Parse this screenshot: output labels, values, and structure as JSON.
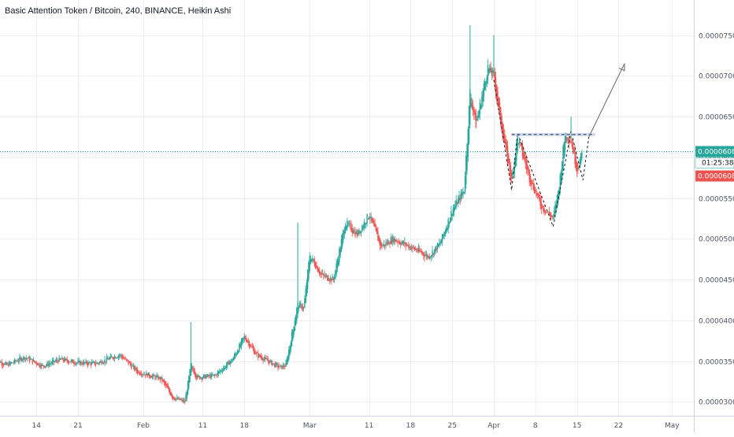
{
  "chart_data": {
    "type": "candlestick",
    "title": "Basic Attention Token / Bitcoin, 240, BINANCE, Heikin Ashi",
    "x_labels": [
      "14",
      "21",
      "Feb",
      "11",
      "18",
      "Mar",
      "11",
      "18",
      "25",
      "Apr",
      "8",
      "15",
      "22",
      "May"
    ],
    "y_ticks": [
      "0.00003000",
      "0.00003500",
      "0.00004000",
      "0.00004500",
      "0.00005000",
      "0.00005500",
      "0.00006000",
      "0.00006500",
      "0.00007000",
      "0.00007500"
    ],
    "ylim": [
      2.83e-05,
      7.93e-05
    ],
    "current_price_label": "0.00006080",
    "countdown_label": "01:25:38",
    "red_price_label": "0.00006080",
    "current_price": 6.08e-05,
    "grid": true,
    "colors": {
      "up": "#26a69a",
      "down": "#ef5350",
      "grid": "#eef0f3",
      "axis_text": "#131722",
      "price_line": "#26a69a"
    },
    "series_close_path": [
      {
        "date": "Jan 7",
        "value": 3.52e-05
      },
      {
        "date": "Jan 9",
        "value": 3.45e-05
      },
      {
        "date": "Jan 12",
        "value": 3.55e-05
      },
      {
        "date": "Jan 15",
        "value": 3.44e-05
      },
      {
        "date": "Jan 18",
        "value": 3.52e-05
      },
      {
        "date": "Jan 21",
        "value": 3.48e-05
      },
      {
        "date": "Jan 24",
        "value": 3.47e-05
      },
      {
        "date": "Jan 28",
        "value": 3.58e-05
      },
      {
        "date": "Jan 31",
        "value": 3.37e-05
      },
      {
        "date": "Feb 4",
        "value": 3.28e-05
      },
      {
        "date": "Feb 6",
        "value": 3.05e-05
      },
      {
        "date": "Feb 8",
        "value": 3e-05
      },
      {
        "date": "Feb 9",
        "value": 3.45e-05
      },
      {
        "date": "Feb 10",
        "value": 3.3e-05
      },
      {
        "date": "Feb 13",
        "value": 3.32e-05
      },
      {
        "date": "Feb 16",
        "value": 3.52e-05
      },
      {
        "date": "Feb 18",
        "value": 3.8e-05
      },
      {
        "date": "Feb 20",
        "value": 3.58e-05
      },
      {
        "date": "Feb 24",
        "value": 3.42e-05
      },
      {
        "date": "Feb 25",
        "value": 3.45e-05
      },
      {
        "date": "Feb 27",
        "value": 4.2e-05
      },
      {
        "date": "Feb 28",
        "value": 4.15e-05
      },
      {
        "date": "Mar 1",
        "value": 4.8e-05
      },
      {
        "date": "Mar 3",
        "value": 4.55e-05
      },
      {
        "date": "Mar 5",
        "value": 4.5e-05
      },
      {
        "date": "Mar 7",
        "value": 5.2e-05
      },
      {
        "date": "Mar 9",
        "value": 5.05e-05
      },
      {
        "date": "Mar 11",
        "value": 5.3e-05
      },
      {
        "date": "Mar 13",
        "value": 4.9e-05
      },
      {
        "date": "Mar 15",
        "value": 5e-05
      },
      {
        "date": "Mar 18",
        "value": 4.9e-05
      },
      {
        "date": "Mar 21",
        "value": 4.78e-05
      },
      {
        "date": "Mar 23",
        "value": 4.95e-05
      },
      {
        "date": "Mar 25",
        "value": 5.35e-05
      },
      {
        "date": "Mar 27",
        "value": 5.6e-05
      },
      {
        "date": "Mar 28",
        "value": 6.8e-05
      },
      {
        "date": "Mar 29",
        "value": 6.4e-05
      },
      {
        "date": "Mar 31",
        "value": 7.1e-05
      },
      {
        "date": "Apr 1",
        "value": 7e-05
      },
      {
        "date": "Apr 2",
        "value": 6.5e-05
      },
      {
        "date": "Apr 3",
        "value": 6.1e-05
      },
      {
        "date": "Apr 4",
        "value": 5.7e-05
      },
      {
        "date": "Apr 5",
        "value": 6.25e-05
      },
      {
        "date": "Apr 6",
        "value": 6e-05
      },
      {
        "date": "Apr 7",
        "value": 5.75e-05
      },
      {
        "date": "Apr 9",
        "value": 5.4e-05
      },
      {
        "date": "Apr 11",
        "value": 5.25e-05
      },
      {
        "date": "Apr 12",
        "value": 5.65e-05
      },
      {
        "date": "Apr 13",
        "value": 6.3e-05
      },
      {
        "date": "Apr 14",
        "value": 6.2e-05
      },
      {
        "date": "Apr 15",
        "value": 5.85e-05
      },
      {
        "date": "Apr 16",
        "value": 6.08e-05
      }
    ],
    "pattern": {
      "vertices": [
        {
          "date": "Apr 1",
          "value": 6.95e-05
        },
        {
          "date": "Apr 4",
          "value": 5.6e-05
        },
        {
          "date": "Apr 5",
          "value": 6.3e-05
        },
        {
          "date": "Apr 11",
          "value": 5.15e-05
        },
        {
          "date": "Apr 14",
          "value": 6.32e-05
        },
        {
          "date": "Apr 16",
          "value": 5.72e-05
        },
        {
          "date": "Apr 17",
          "value": 6.25e-05
        }
      ],
      "neckline": {
        "from_date": "Apr 4",
        "to_date": "Apr 18",
        "value": 6.28e-05
      },
      "arrow": {
        "from_date": "Apr 17",
        "from_value": 6.25e-05,
        "to_date": "Apr 23",
        "to_value": 7.15e-05
      }
    }
  }
}
